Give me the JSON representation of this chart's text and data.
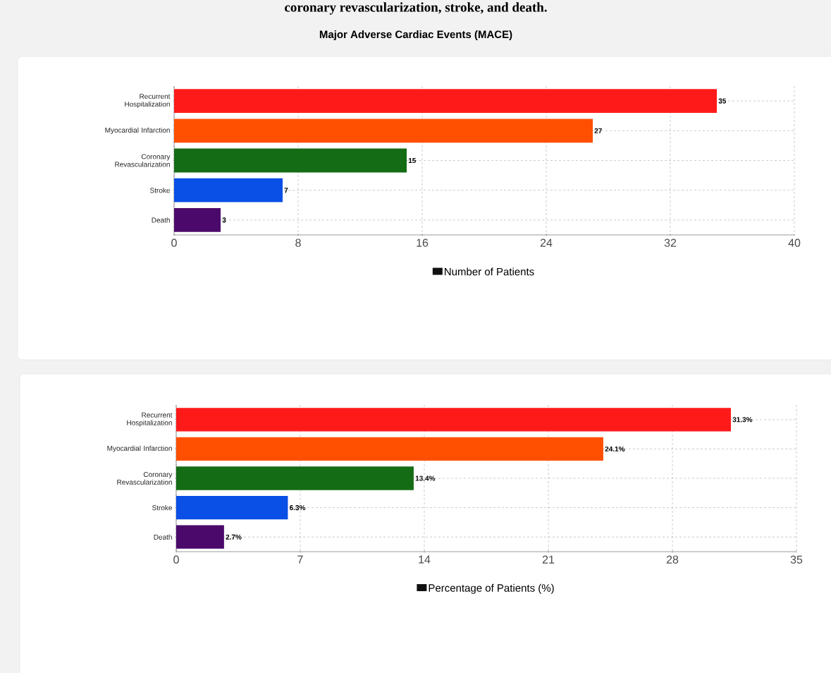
{
  "chart_data": [
    {
      "type": "bar",
      "orientation": "horizontal",
      "title": "Major Adverse Cardiac Events (MACE)",
      "annotations": [
        "coronary revascularization, stroke, and death."
      ],
      "categories": [
        "Recurrent Hospitalization",
        "Myocardial Infarction",
        "Coronary Revascularization",
        "Stroke",
        "Death"
      ],
      "series": [
        {
          "name": "Number of Patients",
          "color": "#111111",
          "colors": [
            "#ff1a1a",
            "#ff4f00",
            "#146c14",
            "#0a4fe6",
            "#4b0a6b"
          ],
          "values": [
            35,
            27,
            15,
            7,
            3
          ]
        }
      ],
      "data_labels": true,
      "xlim": [
        0,
        40
      ],
      "xticks": [
        0,
        8,
        16,
        24,
        32,
        40
      ],
      "grid": true,
      "legend": "bottom"
    },
    {
      "type": "bar",
      "orientation": "horizontal",
      "categories": [
        "Recurrent Hospitalization",
        "Myocardial Infarction",
        "Coronary Revascularization",
        "Stroke",
        "Death"
      ],
      "series": [
        {
          "name": "Percentage of Patients (%)",
          "color": "#111111",
          "colors": [
            "#ff1a1a",
            "#ff4f00",
            "#146c14",
            "#0a4fe6",
            "#4b0a6b"
          ],
          "values": [
            31.3,
            24.1,
            13.4,
            6.3,
            2.7
          ],
          "value_labels": [
            "31.3%",
            "24.1%",
            "13.4%",
            "6.3%",
            "2.7%"
          ]
        }
      ],
      "xlim": [
        0,
        35
      ],
      "xticks": [
        0,
        7,
        14,
        21,
        28,
        35
      ],
      "grid": true,
      "legend": "bottom"
    }
  ]
}
